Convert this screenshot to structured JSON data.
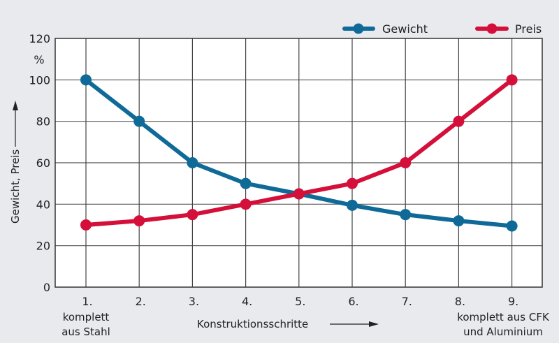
{
  "chart_data": {
    "type": "line",
    "title": "",
    "xlabel": "Konstruktionsschritte",
    "ylabel": "Gewicht, Preis",
    "y_unit": "%",
    "ylim": [
      0,
      120
    ],
    "yticks": [
      0,
      20,
      40,
      60,
      80,
      100,
      120
    ],
    "grid": true,
    "legend_position": "top-right",
    "categories": [
      "1.",
      "2.",
      "3.",
      "4.",
      "5.",
      "6.",
      "7.",
      "8.",
      "9."
    ],
    "category_notes": {
      "first": [
        "komplett",
        "aus Stahl"
      ],
      "last": [
        "komplett aus CFK",
        "und Aluminium"
      ]
    },
    "series": [
      {
        "name": "Gewicht",
        "color": "#0f6a98",
        "values": [
          100,
          80,
          60,
          50,
          45,
          39.5,
          35,
          32,
          29.5
        ]
      },
      {
        "name": "Preis",
        "color": "#d4103a",
        "values": [
          30,
          32,
          35,
          40,
          45,
          50,
          60,
          80,
          100
        ]
      }
    ]
  },
  "legend": {
    "gewicht": "Gewicht",
    "preis": "Preis"
  },
  "axis": {
    "y_unit": "%",
    "ylabel": "Gewicht, Preis",
    "xlabel": "Konstruktionsschritte",
    "first_note_1": "komplett",
    "first_note_2": "aus Stahl",
    "last_note_1": "komplett aus CFK",
    "last_note_2": "und Aluminium"
  }
}
